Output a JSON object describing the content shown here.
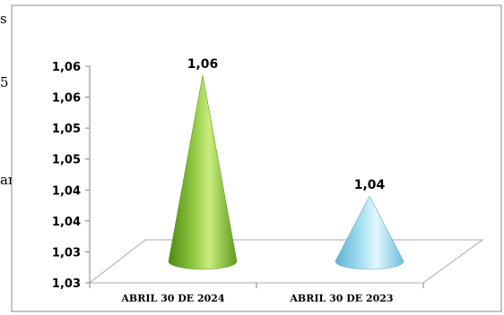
{
  "background_fragments": [
    "s",
    "5",
    "an"
  ],
  "chart_data": {
    "type": "bar",
    "shape": "cone",
    "categories": [
      "ABRIL 30 DE 2024",
      "ABRIL 30 DE 2023"
    ],
    "values": [
      1.06,
      1.04
    ],
    "data_labels": [
      "1,06",
      "1,04"
    ],
    "ylim": [
      1.03,
      1.06
    ],
    "y_ticks": [
      "1,03",
      "1,03",
      "1,04",
      "1,04",
      "1,05",
      "1,05",
      "1,06",
      "1,06"
    ],
    "colors": [
      "#8cc63f",
      "#9fdcef"
    ],
    "grid": false,
    "legend": "none"
  }
}
